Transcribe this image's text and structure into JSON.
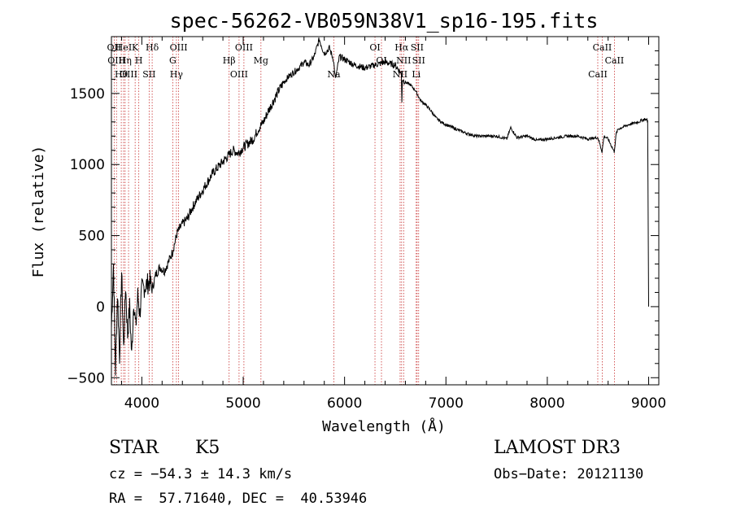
{
  "chart_data": {
    "type": "line",
    "title": "spec-56262-VB059N38V1_sp16-195.fits",
    "xlabel": "Wavelength (Å)",
    "ylabel": "Flux (relative)",
    "xlim": [
      3700,
      9100
    ],
    "ylim": [
      -550,
      1900
    ],
    "xticks": [
      4000,
      5000,
      6000,
      7000,
      8000,
      9000
    ],
    "xtick_labels": [
      "4000",
      "5000",
      "6000",
      "7000",
      "8000",
      "9000"
    ],
    "yticks": [
      -500,
      0,
      500,
      1000,
      1500
    ],
    "ytick_labels": [
      "−500",
      "0",
      "500",
      "1000",
      "1500"
    ],
    "grid": false,
    "series": [
      {
        "name": "flux",
        "x": [
          3700,
          3720,
          3740,
          3760,
          3780,
          3800,
          3820,
          3840,
          3860,
          3880,
          3900,
          3920,
          3940,
          3960,
          3980,
          4000,
          4040,
          4080,
          4100,
          4140,
          4180,
          4220,
          4260,
          4300,
          4350,
          4400,
          4450,
          4500,
          4550,
          4600,
          4650,
          4700,
          4750,
          4800,
          4850,
          4900,
          4950,
          5000,
          5050,
          5100,
          5150,
          5200,
          5250,
          5300,
          5350,
          5400,
          5450,
          5500,
          5550,
          5600,
          5650,
          5700,
          5750,
          5800,
          5850,
          5890,
          5910,
          5950,
          6000,
          6100,
          6200,
          6300,
          6400,
          6500,
          6560,
          6565,
          6570,
          6600,
          6650,
          6700,
          6750,
          6800,
          6850,
          6900,
          6950,
          7000,
          7100,
          7200,
          7300,
          7400,
          7500,
          7600,
          7640,
          7700,
          7800,
          7900,
          8000,
          8100,
          8200,
          8300,
          8400,
          8500,
          8540,
          8560,
          8600,
          8660,
          8680,
          8700,
          8800,
          8900,
          8960,
          8990,
          9000
        ],
        "y": [
          -150,
          300,
          -450,
          100,
          -350,
          250,
          -300,
          150,
          -200,
          0,
          -350,
          50,
          -150,
          80,
          -50,
          120,
          150,
          180,
          120,
          230,
          280,
          250,
          310,
          380,
          520,
          580,
          620,
          700,
          760,
          820,
          880,
          940,
          980,
          1020,
          1060,
          1100,
          1080,
          1120,
          1150,
          1180,
          1250,
          1300,
          1380,
          1450,
          1520,
          1580,
          1620,
          1650,
          1680,
          1720,
          1700,
          1760,
          1880,
          1780,
          1820,
          1740,
          1600,
          1760,
          1740,
          1700,
          1680,
          1700,
          1720,
          1700,
          1640,
          1450,
          1600,
          1580,
          1560,
          1520,
          1450,
          1420,
          1380,
          1330,
          1300,
          1280,
          1250,
          1220,
          1200,
          1200,
          1200,
          1180,
          1260,
          1190,
          1200,
          1170,
          1180,
          1190,
          1200,
          1200,
          1180,
          1190,
          1090,
          1200,
          1180,
          1090,
          1220,
          1250,
          1280,
          1300,
          1320,
          1310,
          0
        ]
      }
    ],
    "line_markers": [
      {
        "wavelength": 3727,
        "label": "OII"
      },
      {
        "wavelength": 3750,
        "label": "OIII"
      },
      {
        "wavelength": 3797,
        "label": "Hθ"
      },
      {
        "wavelength": 3820,
        "label": "HeI"
      },
      {
        "wavelength": 3835,
        "label": "Hη"
      },
      {
        "wavelength": 3869,
        "label": "OIII"
      },
      {
        "wavelength": 3934,
        "label": "K"
      },
      {
        "wavelength": 3970,
        "label": "H"
      },
      {
        "wavelength": 4072,
        "label": "SII"
      },
      {
        "wavelength": 4102,
        "label": "Hδ"
      },
      {
        "wavelength": 4305,
        "label": "G"
      },
      {
        "wavelength": 4341,
        "label": "Hγ"
      },
      {
        "wavelength": 4363,
        "label": "OIII"
      },
      {
        "wavelength": 4861,
        "label": "Hβ"
      },
      {
        "wavelength": 4959,
        "label": "OIII"
      },
      {
        "wavelength": 5007,
        "label": "OIII"
      },
      {
        "wavelength": 5175,
        "label": "Mg"
      },
      {
        "wavelength": 5894,
        "label": "Na"
      },
      {
        "wavelength": 6300,
        "label": "OI"
      },
      {
        "wavelength": 6364,
        "label": "OI"
      },
      {
        "wavelength": 6548,
        "label": "NII"
      },
      {
        "wavelength": 6563,
        "label": "Hα"
      },
      {
        "wavelength": 6583,
        "label": "NII"
      },
      {
        "wavelength": 6707,
        "label": "Li"
      },
      {
        "wavelength": 6716,
        "label": "SII"
      },
      {
        "wavelength": 6731,
        "label": "SII"
      },
      {
        "wavelength": 8498,
        "label": "CaII"
      },
      {
        "wavelength": 8542,
        "label": "CaII"
      },
      {
        "wavelength": 8662,
        "label": "CaII"
      }
    ]
  },
  "info": {
    "class_label": "STAR",
    "subclass": "K5",
    "survey": "LAMOST DR3",
    "cz_text": "cz = −54.3 ± 14.3 km/s",
    "obs_date_text": "Obs−Date: 20121130",
    "coords_text": "RA =  57.71640, DEC =  40.53946"
  }
}
